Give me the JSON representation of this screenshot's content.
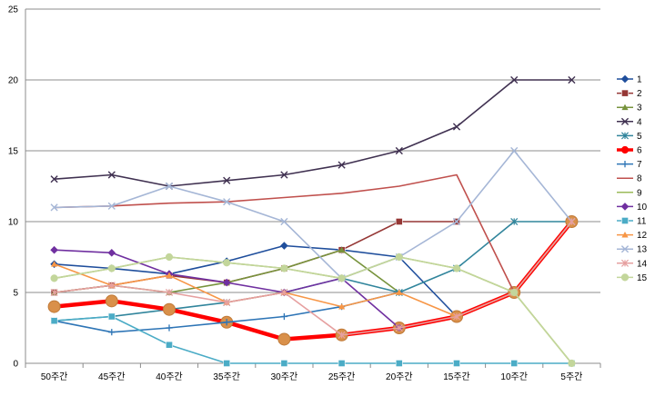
{
  "chart_data": {
    "type": "line",
    "categories": [
      "50주간",
      "45주간",
      "40주간",
      "35주간",
      "30주간",
      "25주간",
      "20주간",
      "15주간",
      "10주간",
      "5주간"
    ],
    "ylim": [
      0,
      25
    ],
    "yticks": [
      0,
      5,
      10,
      15,
      20,
      25
    ],
    "grid": "horizontal",
    "legend_position": "right",
    "series": [
      {
        "name": "1",
        "color": "#1f4e9c",
        "marker": "diamond",
        "values": [
          7,
          6.7,
          6.3,
          7.2,
          8.3,
          8,
          7.5,
          3.3,
          null,
          null
        ]
      },
      {
        "name": "2",
        "color": "#953735",
        "marker": "square",
        "values": [
          5,
          5.5,
          6.2,
          5.7,
          6.7,
          8,
          10,
          10,
          null,
          null
        ]
      },
      {
        "name": "3",
        "color": "#77933c",
        "marker": "triangle",
        "values": [
          5,
          5.5,
          5,
          5.7,
          6.7,
          8,
          5,
          null,
          null,
          null
        ]
      },
      {
        "name": "4",
        "color": "#403151",
        "marker": "x",
        "values": [
          13,
          13.3,
          12.5,
          12.9,
          13.3,
          14,
          15,
          16.7,
          20,
          20
        ]
      },
      {
        "name": "5",
        "color": "#31859c",
        "marker": "asterisk",
        "values": [
          3,
          3.3,
          3.8,
          4.3,
          5,
          6,
          5,
          6.7,
          10,
          10
        ]
      },
      {
        "name": "6",
        "color": "#ff0000",
        "marker": "circle",
        "values": [
          4,
          4.4,
          3.8,
          2.9,
          1.7,
          2,
          2.5,
          3.3,
          5,
          10
        ]
      },
      {
        "name": "7",
        "color": "#2e75b6",
        "marker": "plus",
        "values": [
          3,
          2.2,
          2.5,
          2.9,
          3.3,
          4,
          5,
          null,
          null,
          null
        ]
      },
      {
        "name": "8",
        "color": "#c0504d",
        "marker": "none",
        "values": [
          11,
          11.1,
          11.3,
          11.4,
          11.7,
          12,
          12.5,
          13.3,
          5,
          10
        ]
      },
      {
        "name": "9",
        "color": "#9bbb59",
        "marker": "none",
        "values": [
          6,
          6.7,
          7.5,
          7.1,
          6.7,
          6,
          7.5,
          6.7,
          5,
          0
        ]
      },
      {
        "name": "10",
        "color": "#7030a0",
        "marker": "diamond",
        "values": [
          8,
          7.8,
          6.3,
          5.7,
          5,
          6,
          2.5,
          null,
          null,
          null
        ]
      },
      {
        "name": "11",
        "color": "#4bacc6",
        "marker": "square",
        "values": [
          3,
          3.3,
          1.3,
          0,
          0,
          0,
          0,
          0,
          0,
          0
        ]
      },
      {
        "name": "12",
        "color": "#f79646",
        "marker": "triangle",
        "values": [
          7,
          5.5,
          6.2,
          4.3,
          5,
          4,
          5,
          3.3,
          5,
          10
        ]
      },
      {
        "name": "13",
        "color": "#a5b6d6",
        "marker": "x",
        "values": [
          11,
          11.1,
          12.5,
          11.4,
          10,
          6,
          7.5,
          10,
          15,
          10
        ]
      },
      {
        "name": "14",
        "color": "#e6a0a0",
        "marker": "asterisk",
        "values": [
          5,
          5.5,
          5,
          4.3,
          5,
          2,
          2.5,
          3.3,
          5,
          10
        ]
      },
      {
        "name": "15",
        "color": "#c3d69b",
        "marker": "circle",
        "values": [
          6,
          6.7,
          7.5,
          7.1,
          6.7,
          6,
          7.5,
          6.7,
          5,
          0
        ]
      }
    ]
  }
}
